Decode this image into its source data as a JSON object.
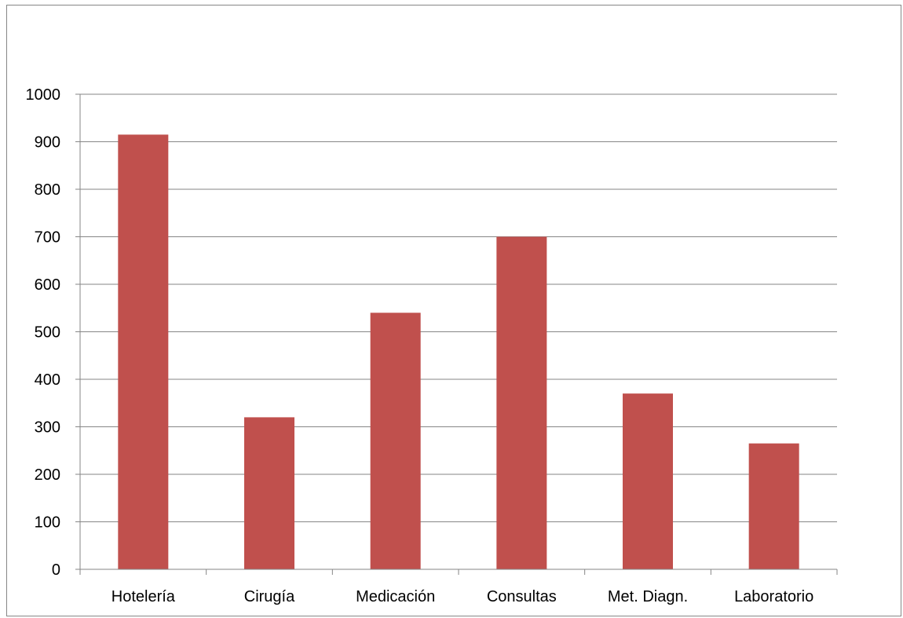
{
  "chart_data": {
    "type": "bar",
    "title": "",
    "xlabel": "",
    "ylabel": "",
    "categories": [
      "Hotelería",
      "Cirugía",
      "Medicación",
      "Consultas",
      "Met. Diagn.",
      "Laboratorio"
    ],
    "series": [
      {
        "values": [
          915,
          320,
          540,
          700,
          370,
          265
        ]
      }
    ],
    "ylim": [
      0,
      1000
    ],
    "y_ticks": [
      0,
      100,
      200,
      300,
      400,
      500,
      600,
      700,
      800,
      900,
      1000
    ],
    "grid": true,
    "legend": "none",
    "colors": {
      "bar": "#c0504d",
      "grid": "#868686",
      "axis": "#868686"
    }
  }
}
